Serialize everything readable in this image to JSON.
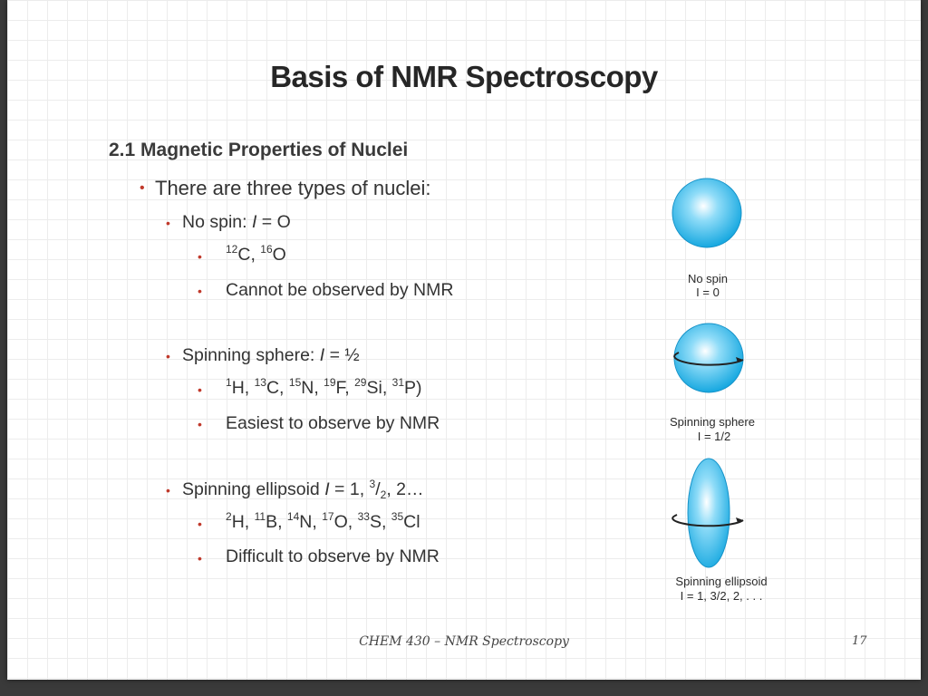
{
  "title": "Basis of NMR Spectroscopy",
  "section": "2.1 Magnetic Properties of Nuclei",
  "intro": "There are three types of nuclei:",
  "types": [
    {
      "name": "No spin: ",
      "I_symbol": "I",
      "I_value": " = O",
      "examples_text": "12C, 16O",
      "note": "Cannot be observed by NMR",
      "figure_label": "No spin",
      "figure_I": "I = 0"
    },
    {
      "name": "Spinning sphere: ",
      "I_symbol": "I",
      "I_value": " = ½",
      "examples_text": "1H, 13C, 15N, 19F, 29Si, 31P)",
      "note": "Easiest to observe by NMR",
      "figure_label": "Spinning sphere",
      "figure_I": "I = 1/2"
    },
    {
      "name": "Spinning ellipsoid ",
      "I_symbol": "I",
      "I_value": " = 1, 3/2, 2…",
      "examples_text": "2H, 11B, 14N, 17O, 33S, 35Cl",
      "note": "Difficult to observe by NMR",
      "figure_label": "Spinning ellipsoid",
      "figure_I": "I = 1, 3/2, 2, . . ."
    }
  ],
  "footer": "CHEM 430 – NMR Spectroscopy",
  "page_number": "17",
  "colors": {
    "bullet": "#c0392b",
    "sphere": "#21b6ea",
    "background_grid": "#ececec"
  }
}
